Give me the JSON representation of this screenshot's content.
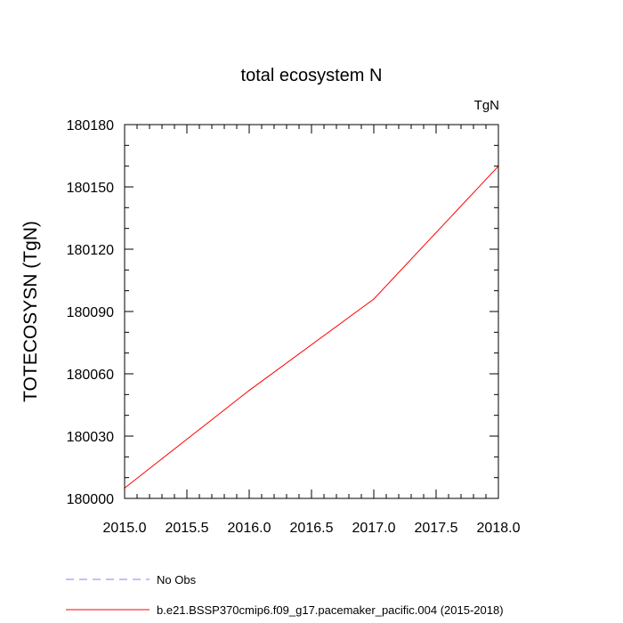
{
  "chart_data": {
    "type": "line",
    "title": "total ecosystem N",
    "units_label": "TgN",
    "xlabel": "",
    "ylabel": "TOTECOSYSN  (TgN)",
    "xlim": [
      2015.0,
      2018.0
    ],
    "ylim": [
      180000,
      180180
    ],
    "x_ticks": [
      2015.0,
      2015.5,
      2016.0,
      2016.5,
      2017.0,
      2017.5,
      2018.0
    ],
    "x_tick_labels": [
      "2015.0",
      "2015.5",
      "2016.0",
      "2016.5",
      "2017.0",
      "2017.5",
      "2018.0"
    ],
    "y_ticks": [
      180000,
      180030,
      180060,
      180090,
      180120,
      180150,
      180180
    ],
    "y_tick_labels": [
      "180000",
      "180030",
      "180060",
      "180090",
      "180120",
      "180150",
      "180180"
    ],
    "grid": false,
    "series": [
      {
        "name": "b.e21.BSSP370cmip6.f09_g17.pacemaker_pacific.004 (2015-2018)",
        "color": "#ff0000",
        "dash": "solid",
        "x": [
          2015.0,
          2016.0,
          2017.0,
          2018.0
        ],
        "values": [
          180005,
          180052,
          180096,
          180160
        ]
      }
    ],
    "legend": [
      {
        "label": "No Obs",
        "color": "#8080ff",
        "dash": "dashed"
      },
      {
        "label": "b.e21.BSSP370cmip6.f09_g17.pacemaker_pacific.004 (2015-2018)",
        "color": "#ff0000",
        "dash": "solid"
      }
    ]
  }
}
